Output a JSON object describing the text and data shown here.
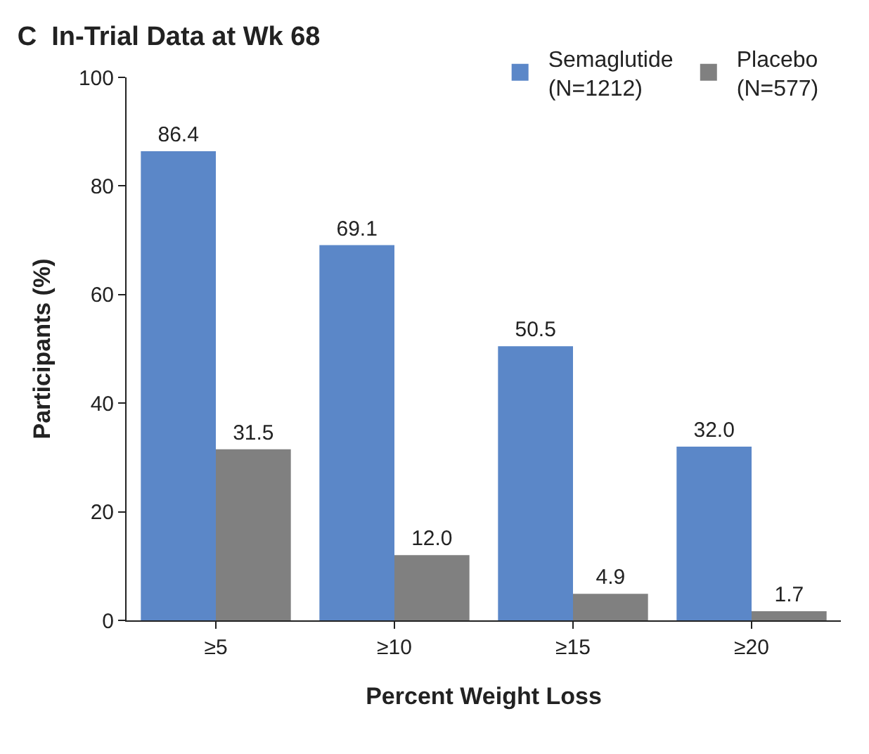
{
  "chart_data": {
    "type": "bar",
    "title": "C  In-Trial Data at Wk 68",
    "xlabel": "Percent Weight Loss",
    "ylabel": "Participants (%)",
    "categories": [
      "≥5",
      "≥10",
      "≥15",
      "≥20"
    ],
    "series": [
      {
        "name": "Semaglutide\n(N=1212)",
        "color": "#5b87c8",
        "values": [
          86.4,
          69.1,
          50.5,
          32.0
        ]
      },
      {
        "name": "Placebo\n(N=577)",
        "color": "#808080",
        "values": [
          31.5,
          12.0,
          4.9,
          1.7
        ]
      }
    ],
    "value_labels": [
      [
        "86.4",
        "69.1",
        "50.5",
        "32.0"
      ],
      [
        "31.5",
        "12.0",
        "4.9",
        "1.7"
      ]
    ],
    "ylim": [
      0,
      100
    ],
    "yticks": [
      0,
      20,
      40,
      60,
      80,
      100
    ],
    "legend": "top right"
  }
}
